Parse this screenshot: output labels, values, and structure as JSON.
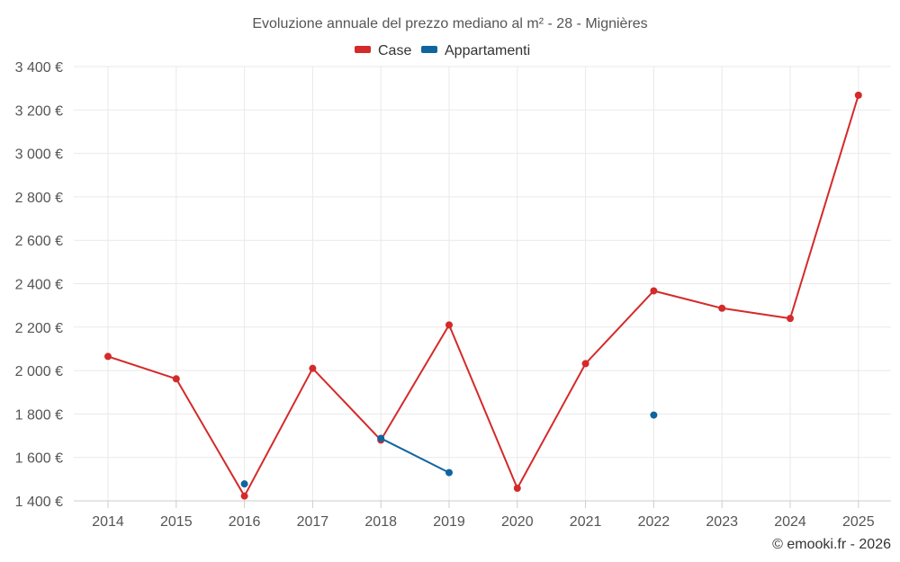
{
  "chart_data": {
    "type": "line",
    "title": "Evoluzione annuale del prezzo mediano al m² - 28 - Mignières",
    "xlabel": "",
    "ylabel": "",
    "categories": [
      "2014",
      "2015",
      "2016",
      "2017",
      "2018",
      "2019",
      "2020",
      "2021",
      "2022",
      "2023",
      "2024",
      "2025"
    ],
    "ylim": [
      1400,
      3400
    ],
    "yticks": [
      1400,
      1600,
      1800,
      2000,
      2200,
      2400,
      2600,
      2800,
      3000,
      3200,
      3400
    ],
    "ytick_labels": [
      "1 400 €",
      "1 600 €",
      "1 800 €",
      "2 000 €",
      "2 200 €",
      "2 400 €",
      "2 600 €",
      "2 800 €",
      "3 000 €",
      "3 200 €",
      "3 400 €"
    ],
    "grid": true,
    "legend_position": "top-center",
    "series": [
      {
        "name": "Case",
        "color": "#d42a2a",
        "values": [
          2065,
          1962,
          1422,
          2010,
          1680,
          2210,
          1458,
          2032,
          2367,
          2287,
          2240,
          3268
        ]
      },
      {
        "name": "Appartamenti",
        "color": "#0f659e",
        "values": [
          null,
          null,
          1478,
          null,
          1688,
          1530,
          null,
          null,
          1795,
          null,
          null,
          null
        ]
      }
    ]
  },
  "credit": "© emooki.fr - 2026"
}
